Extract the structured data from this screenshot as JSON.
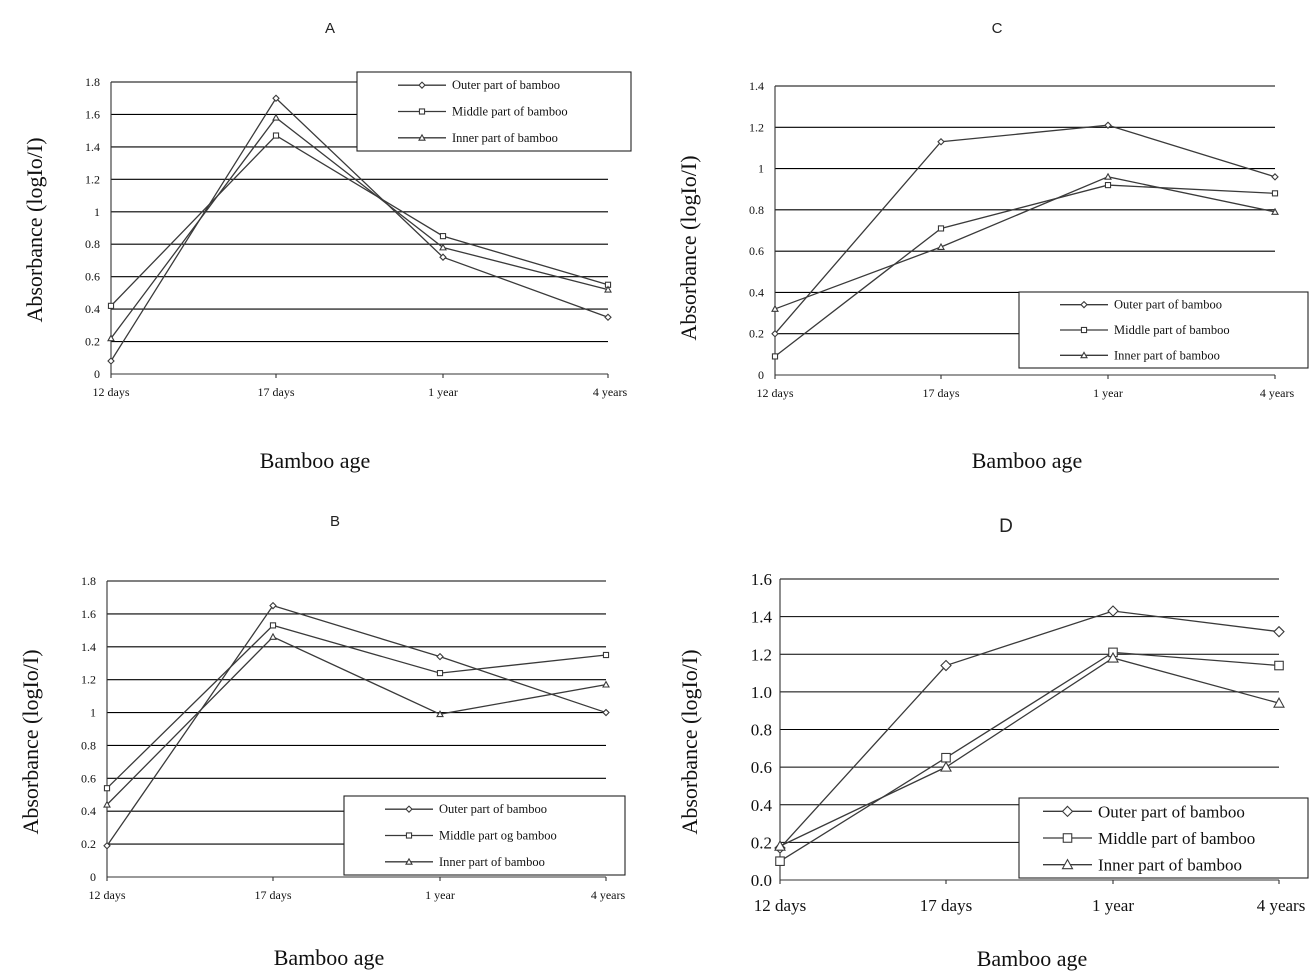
{
  "chart_data": [
    {
      "panel_title": "A",
      "type": "line",
      "categories": [
        "12 days",
        "17 days",
        "1 year",
        "4 years"
      ],
      "series": [
        {
          "name": "Outer part of bamboo",
          "marker": "diamond",
          "values": [
            0.08,
            1.7,
            0.72,
            0.35
          ]
        },
        {
          "name": "Middle part of bamboo",
          "marker": "square",
          "values": [
            0.42,
            1.47,
            0.85,
            0.55
          ]
        },
        {
          "name": "Inner part of bamboo",
          "marker": "triangle",
          "values": [
            0.22,
            1.58,
            0.78,
            0.52
          ]
        }
      ],
      "ylim": [
        0,
        1.8
      ],
      "yticks": [
        "0",
        "0.2",
        "0.4",
        "0.6",
        "0.8",
        "1",
        "1.2",
        "1.4",
        "1.6",
        "1.8"
      ],
      "xlabel": "Bamboo age",
      "ylabel": "Absorbance (logIo/I)",
      "grid": true,
      "legend_position": "top-right"
    },
    {
      "panel_title": "C",
      "type": "line",
      "categories": [
        "12 days",
        "17 days",
        "1 year",
        "4 years"
      ],
      "series": [
        {
          "name": "Outer part of bamboo",
          "marker": "diamond",
          "values": [
            0.2,
            1.13,
            1.21,
            0.96
          ]
        },
        {
          "name": "Middle part of bamboo",
          "marker": "square",
          "values": [
            0.09,
            0.71,
            0.92,
            0.88
          ]
        },
        {
          "name": "Inner part of bamboo",
          "marker": "triangle",
          "values": [
            0.32,
            0.62,
            0.96,
            0.79
          ]
        }
      ],
      "ylim": [
        0,
        1.4
      ],
      "yticks": [
        "0",
        "0.2",
        "0.4",
        "0.6",
        "0.8",
        "1",
        "1.2",
        "1.4"
      ],
      "xlabel": "Bamboo age",
      "ylabel": "Absorbance (logIo/I)",
      "grid": true,
      "legend_position": "bottom-right"
    },
    {
      "panel_title": "B",
      "type": "line",
      "categories": [
        "12 days",
        "17 days",
        "1 year",
        "4 years"
      ],
      "series": [
        {
          "name": "Outer part of bamboo",
          "marker": "diamond",
          "values": [
            0.19,
            1.65,
            1.34,
            1.0
          ]
        },
        {
          "name": "Middle part og bamboo",
          "marker": "square",
          "values": [
            0.54,
            1.53,
            1.24,
            1.35
          ]
        },
        {
          "name": "Inner part of bamboo",
          "marker": "triangle",
          "values": [
            0.44,
            1.46,
            0.99,
            1.17
          ]
        }
      ],
      "ylim": [
        0,
        1.8
      ],
      "yticks": [
        "0",
        "0.2",
        "0.4",
        "0.6",
        "0.8",
        "1",
        "1.2",
        "1.4",
        "1.6",
        "1.8"
      ],
      "xlabel": "Bamboo age",
      "ylabel": "Absorbance (logIo/I)",
      "grid": true,
      "legend_position": "bottom-right"
    },
    {
      "panel_title": "D",
      "type": "line",
      "categories": [
        "12 days",
        "17 days",
        "1 year",
        "4 years"
      ],
      "series": [
        {
          "name": "Outer part of bamboo",
          "marker": "diamond",
          "values": [
            0.17,
            1.14,
            1.43,
            1.32
          ]
        },
        {
          "name": "Middle part of bamboo",
          "marker": "square",
          "values": [
            0.1,
            0.65,
            1.21,
            1.14
          ]
        },
        {
          "name": "Inner part of bamboo",
          "marker": "triangle",
          "values": [
            0.18,
            0.6,
            1.18,
            0.94
          ]
        }
      ],
      "ylim": [
        0,
        1.6
      ],
      "yticks": [
        "0.0",
        "0.2",
        "0.4",
        "0.6",
        "0.8",
        "1.0",
        "1.2",
        "1.4",
        "1.6"
      ],
      "xlabel": "Bamboo age",
      "ylabel": "Absorbance (logIo/I)",
      "grid": true,
      "legend_position": "bottom-right"
    }
  ]
}
